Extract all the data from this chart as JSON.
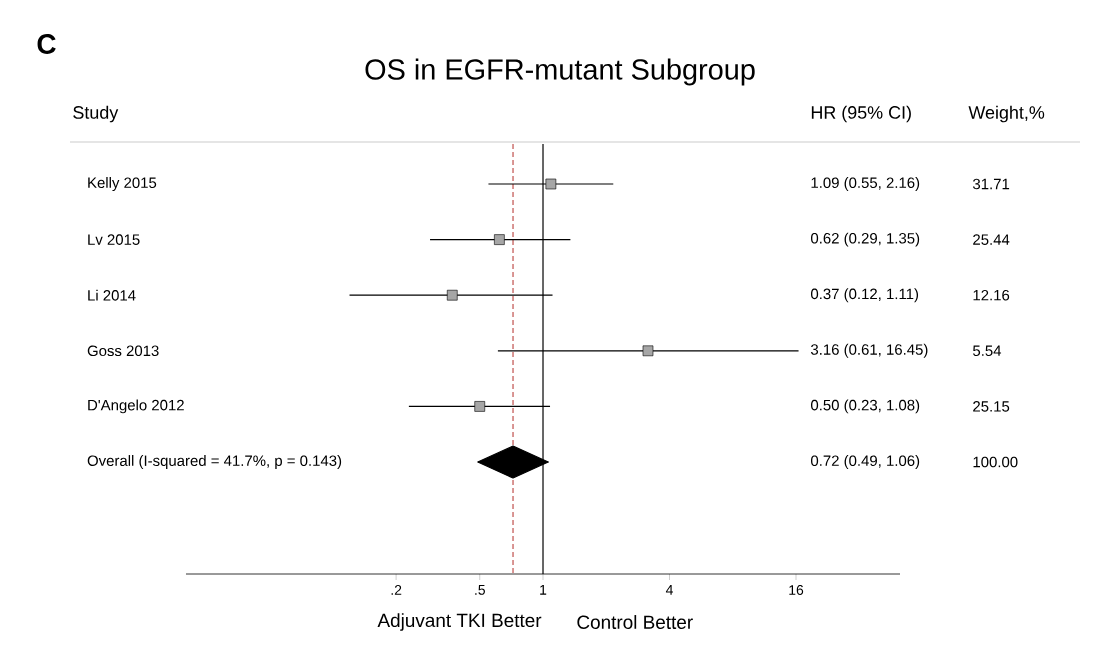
{
  "chart_data": {
    "type": "scatter",
    "title": "OS in EGFR-mutant Subgroup",
    "orientation": "horizontal",
    "categories": [
      "Kelly 2015",
      "Lv 2015",
      "Li 2014",
      "Goss 2013",
      "D'Angelo 2012",
      "Overall (I-squared = 41.7%, p = 0.143)"
    ],
    "series": [
      {
        "color": "#a6a6a6",
        "marker": "square",
        "values": [
          1.09,
          0.62,
          0.37,
          3.16,
          0.5,
          null
        ],
        "errors": [
          [
            0.55,
            2.16
          ],
          [
            0.29,
            1.35
          ],
          [
            0.12,
            1.11
          ],
          [
            0.61,
            16.45
          ],
          [
            0.23,
            1.08
          ],
          null
        ]
      },
      {
        "color": "#000000",
        "marker": "diamond",
        "values": [
          null,
          null,
          null,
          null,
          null,
          0.72
        ],
        "errors": [
          null,
          null,
          null,
          null,
          null,
          [
            0.49,
            1.06
          ]
        ]
      }
    ],
    "log": "x",
    "xlim": [
      0.02,
      50
    ],
    "xticks": [
      {
        "value": 0.2,
        "label": ".2"
      },
      {
        "value": 0.5,
        "label": ".5"
      },
      1,
      4,
      16
    ],
    "ref_lines": [
      {
        "axis": "x",
        "value": 1,
        "color": "#000000",
        "line_style": "solid"
      },
      {
        "axis": "x",
        "value": 0.72,
        "color": "#c0504d",
        "line_style": "dashed"
      }
    ],
    "annotations": [
      "C",
      "Study",
      "HR (95% CI)",
      "Weight,%",
      "1.09 (0.55, 2.16)",
      "0.62 (0.29, 1.35)",
      "0.37 (0.12, 1.11)",
      "3.16 (0.61, 16.45)",
      "0.50 (0.23, 1.08)",
      "0.72 (0.49, 1.06)",
      "31.71",
      "25.44",
      "12.16",
      "5.54",
      "25.15",
      "100.00",
      "Adjuvant TKI Better",
      "Control Better"
    ]
  }
}
